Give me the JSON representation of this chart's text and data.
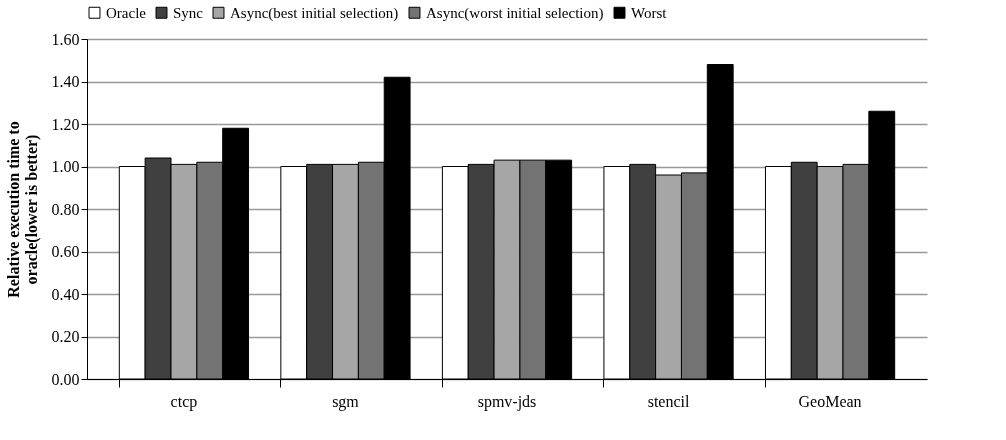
{
  "chart_data": {
    "type": "bar",
    "ylabel": "Relative execution time to\noracle(lower is better)",
    "categories": [
      "ctcp",
      "sgm",
      "spmv-jds",
      "stencil",
      "GeoMean"
    ],
    "series": [
      {
        "name": "Oracle",
        "color": "#ffffff",
        "values": [
          1.0,
          1.0,
          1.0,
          1.0,
          1.0
        ]
      },
      {
        "name": "Sync",
        "color": "#404040",
        "values": [
          1.04,
          1.01,
          1.01,
          1.01,
          1.02
        ]
      },
      {
        "name": "Async(best initial selection)",
        "color": "#a6a6a6",
        "values": [
          1.01,
          1.01,
          1.03,
          0.96,
          1.0
        ]
      },
      {
        "name": "Async(worst initial selection)",
        "color": "#737373",
        "values": [
          1.02,
          1.02,
          1.03,
          0.97,
          1.01
        ]
      },
      {
        "name": "Worst",
        "color": "#000000",
        "values": [
          1.18,
          1.42,
          1.03,
          1.48,
          1.26
        ]
      }
    ],
    "ylim": [
      0,
      1.6
    ],
    "yticks": [
      {
        "value": 0,
        "label": "0.00"
      },
      {
        "value": 0.2,
        "label": "0.20"
      },
      {
        "value": 0.4,
        "label": "0.40"
      },
      {
        "value": 0.6,
        "label": "0.60"
      },
      {
        "value": 0.8,
        "label": "0.80"
      },
      {
        "value": 1.0,
        "label": "1.00"
      },
      {
        "value": 1.2,
        "label": "1.20"
      },
      {
        "value": 1.4,
        "label": "1.40"
      },
      {
        "value": 1.6,
        "label": "1.60"
      }
    ],
    "grid": "y",
    "legend": "top"
  }
}
